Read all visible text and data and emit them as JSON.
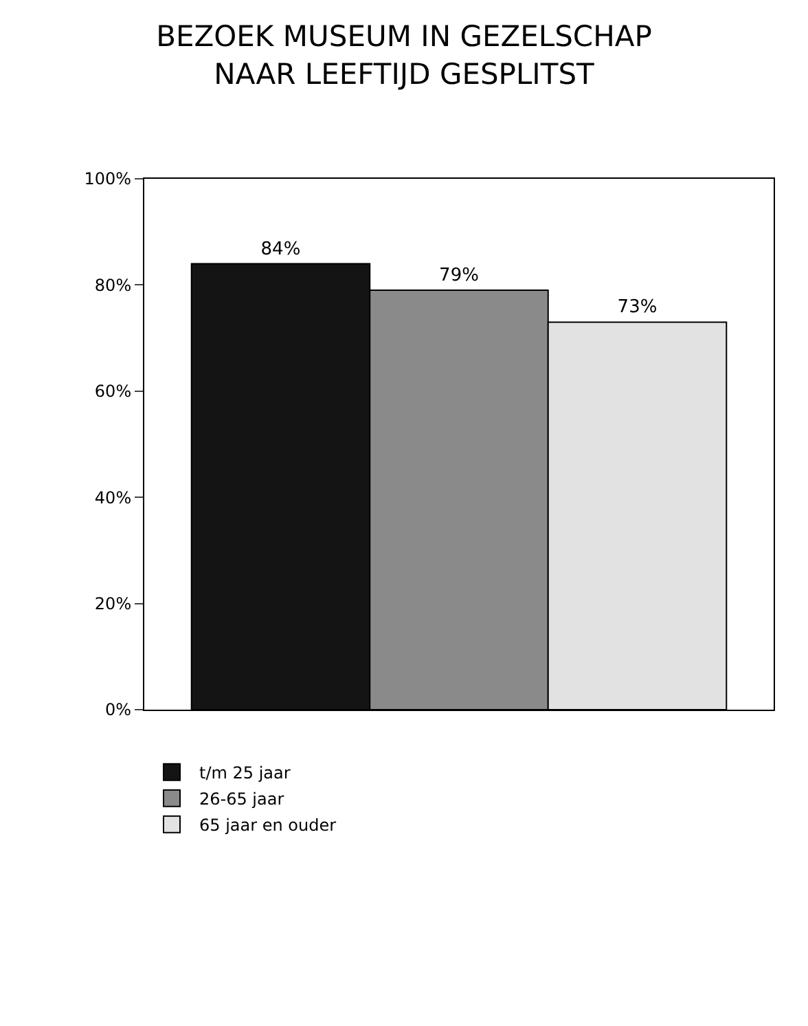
{
  "chart_data": {
    "type": "bar",
    "title": "BEZOEK MUSEUM IN GEZELSCHAP\nNAAR LEEFTIJD GESPLITST",
    "categories": [
      null
    ],
    "series": [
      {
        "name": "t/m 25 jaar",
        "color": "#141414",
        "values": [
          84
        ],
        "value_labels": [
          "84%"
        ]
      },
      {
        "name": "26-65 jaar",
        "color": "#8a8a8a",
        "values": [
          79
        ],
        "value_labels": [
          "79%"
        ]
      },
      {
        "name": "65 jaar en ouder",
        "color": "#e2e2e2",
        "values": [
          73
        ],
        "value_labels": [
          "73%"
        ]
      }
    ],
    "ylim": [
      0,
      100
    ],
    "yticks": [
      {
        "value": 0,
        "label": "0%"
      },
      {
        "value": 20,
        "label": "20%"
      },
      {
        "value": 40,
        "label": "40%"
      },
      {
        "value": 60,
        "label": "60%"
      },
      {
        "value": 80,
        "label": "80%"
      },
      {
        "value": 100,
        "label": "100%"
      }
    ],
    "grid": false,
    "legend": "bottom"
  }
}
